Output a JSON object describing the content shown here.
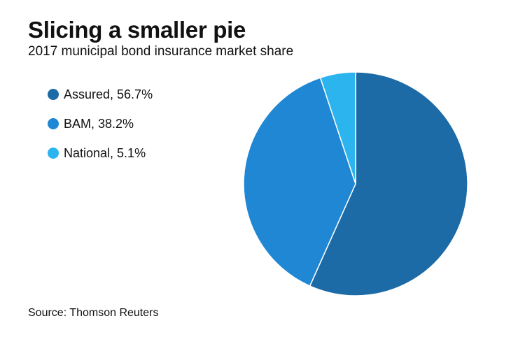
{
  "header": {
    "title": "Slicing a smaller pie",
    "subtitle": "2017 municipal bond insurance market share"
  },
  "legend": [
    {
      "label": "Assured, 56.7%",
      "color": "#1c6aa6"
    },
    {
      "label": "BAM, 38.2%",
      "color": "#1f87d3"
    },
    {
      "label": "National, 5.1%",
      "color": "#2bb4ee"
    }
  ],
  "footer": {
    "source": "Source: Thomson Reuters"
  },
  "chart_data": {
    "type": "pie",
    "title": "Slicing a smaller pie",
    "subtitle": "2017 municipal bond insurance market share",
    "categories": [
      "Assured",
      "BAM",
      "National"
    ],
    "values": [
      56.7,
      38.2,
      5.1
    ],
    "unit": "%",
    "colors": [
      "#1c6aa6",
      "#1f87d3",
      "#2bb4ee"
    ],
    "start_angle": "12 o'clock",
    "direction": "clockwise",
    "legend_position": "left"
  }
}
